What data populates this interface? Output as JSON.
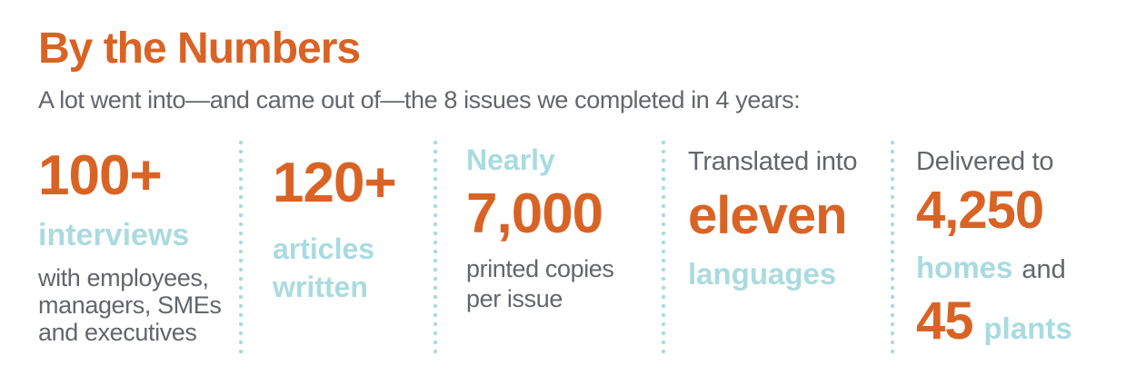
{
  "colors": {
    "orange": "#D96325",
    "light_blue": "#A9DBDF",
    "gray": "#63666A",
    "background": "#FFFFFF"
  },
  "header": {
    "title": "By the Numbers",
    "subtitle": "A lot went into—and came out of—the 8 issues we completed in 4 years:"
  },
  "stats": [
    {
      "value": "100+",
      "label": "interviews",
      "desc_lines": [
        "with employees,",
        "managers, SMEs",
        "and executives"
      ]
    },
    {
      "value": "120+",
      "label_lines": [
        "articles",
        "written"
      ]
    },
    {
      "qualifier": "Nearly",
      "value": "7,000",
      "desc_lines": [
        "printed copies",
        "per issue"
      ]
    },
    {
      "qualifier": "Translated into",
      "value": "eleven",
      "label": "languages"
    },
    {
      "qualifier": "Delivered to",
      "value": "4,250",
      "label": "homes",
      "conjunction": "and",
      "value2": "45",
      "label2": "plants"
    }
  ],
  "chart_data": {
    "type": "table",
    "title": "By the Numbers",
    "subtitle": "A lot went into—and came out of—the 8 issues we completed in 4 years:",
    "issues_completed": 8,
    "years": 4,
    "stats": [
      {
        "metric": "interviews",
        "value": 100,
        "display": "100+",
        "detail": "with employees, managers, SMEs and executives"
      },
      {
        "metric": "articles written",
        "value": 120,
        "display": "120+"
      },
      {
        "metric": "printed copies per issue",
        "value": 7000,
        "display": "Nearly 7,000"
      },
      {
        "metric": "languages translated into",
        "value": 11,
        "display": "eleven"
      },
      {
        "metric": "homes delivered to",
        "value": 4250,
        "display": "4,250"
      },
      {
        "metric": "plants delivered to",
        "value": 45,
        "display": "45"
      }
    ]
  }
}
